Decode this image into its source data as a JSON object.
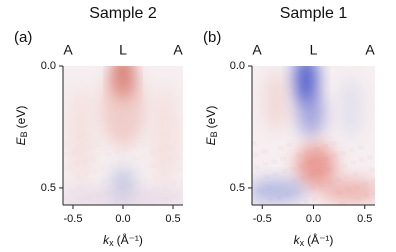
{
  "chart_data": [
    {
      "type": "image",
      "title": "Sample 2",
      "panel_label": "(a)",
      "top_labels": [
        "A",
        "L",
        "A"
      ],
      "xlabel": {
        "symbol": "k",
        "subscript": "x",
        "unit": "(Å⁻¹)"
      },
      "ylabel": {
        "symbol": "E",
        "subscript": "B",
        "unit": "(eV)"
      },
      "xlim": [
        -0.6,
        0.6
      ],
      "ylim": [
        0,
        0.57
      ],
      "xticks": [
        -0.5,
        {
          "value": 0,
          "label": "0.0"
        },
        0.5
      ],
      "yticks": [
        {
          "value": 0,
          "label": "0.0"
        },
        0.5
      ]
    },
    {
      "type": "image",
      "title": "Sample 1",
      "panel_label": "(b)",
      "top_labels": [
        "A",
        "L",
        "A"
      ],
      "xlabel": {
        "symbol": "k",
        "subscript": "x",
        "unit": "(Å⁻¹)"
      },
      "ylabel": {
        "symbol": "E",
        "subscript": "B",
        "unit": "(eV)"
      },
      "xlim": [
        -0.6,
        0.6
      ],
      "ylim": [
        0,
        0.57
      ],
      "xticks": [
        -0.5,
        {
          "value": 0,
          "label": "0.0"
        },
        0.5
      ],
      "yticks": [
        {
          "value": 0,
          "label": "0.0"
        },
        0.5
      ]
    }
  ]
}
